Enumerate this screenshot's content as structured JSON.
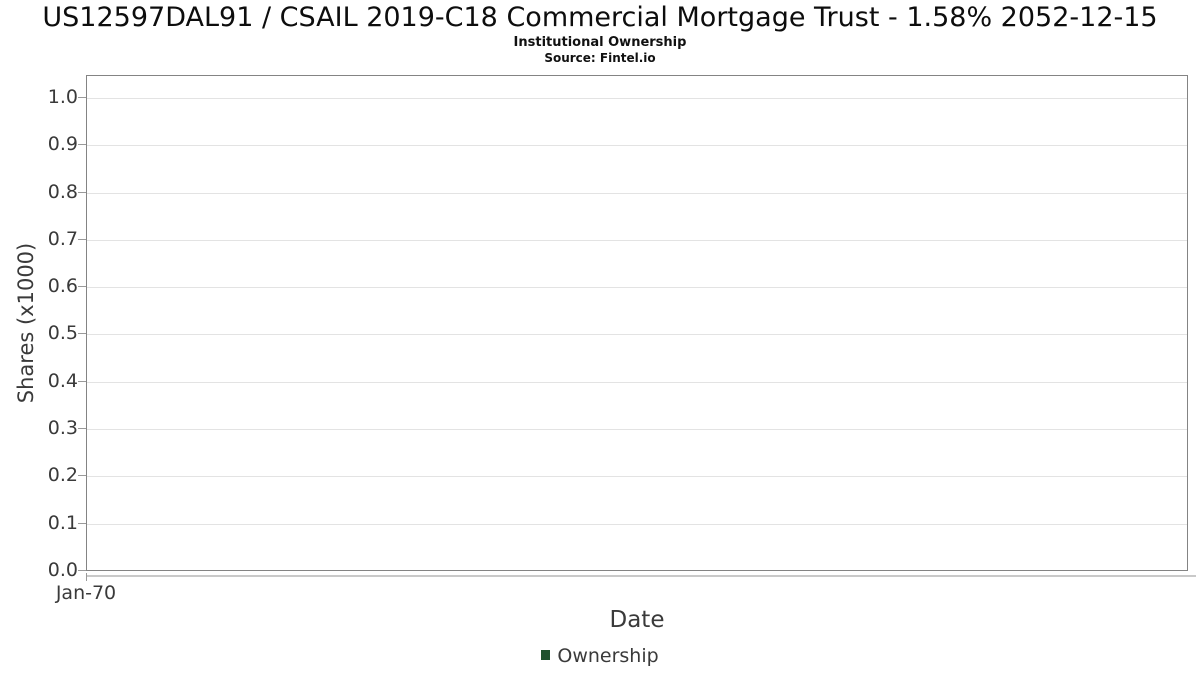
{
  "header": {
    "note": ""
  },
  "chart_data": {
    "type": "line",
    "title": "US12597DAL91 / CSAIL 2019-C18 Commercial Mortgage Trust - 1.58% 2052-12-15",
    "subtitle": "Institutional Ownership",
    "source": "Source: Fintel.io",
    "xlabel": "Date",
    "ylabel": "Shares (x1000)",
    "ylim": [
      0.0,
      1.05
    ],
    "ytick_labels": [
      "0.0",
      "0.1",
      "0.2",
      "0.3",
      "0.4",
      "0.5",
      "0.6",
      "0.7",
      "0.8",
      "0.9",
      "1.0"
    ],
    "ytick_values": [
      0.0,
      0.1,
      0.2,
      0.3,
      0.4,
      0.5,
      0.6,
      0.7,
      0.8,
      0.9,
      1.0
    ],
    "xtick_labels": [
      "Jan-70"
    ],
    "grid": "horizontal gridlines only",
    "legend_position": "bottom-center",
    "series": [
      {
        "name": "Ownership",
        "color": "#1f512e",
        "x": [],
        "values": []
      }
    ],
    "plot_is_empty": true
  },
  "style": {
    "grid_color": "#e3e3e3",
    "plot_border_color": "#848484",
    "axis_line_color": "#c9c9c9",
    "tick_color": "#9a9a9a",
    "text_color": "#3a3a3a",
    "title_color": "#0d0d0d",
    "background": "#ffffff"
  }
}
